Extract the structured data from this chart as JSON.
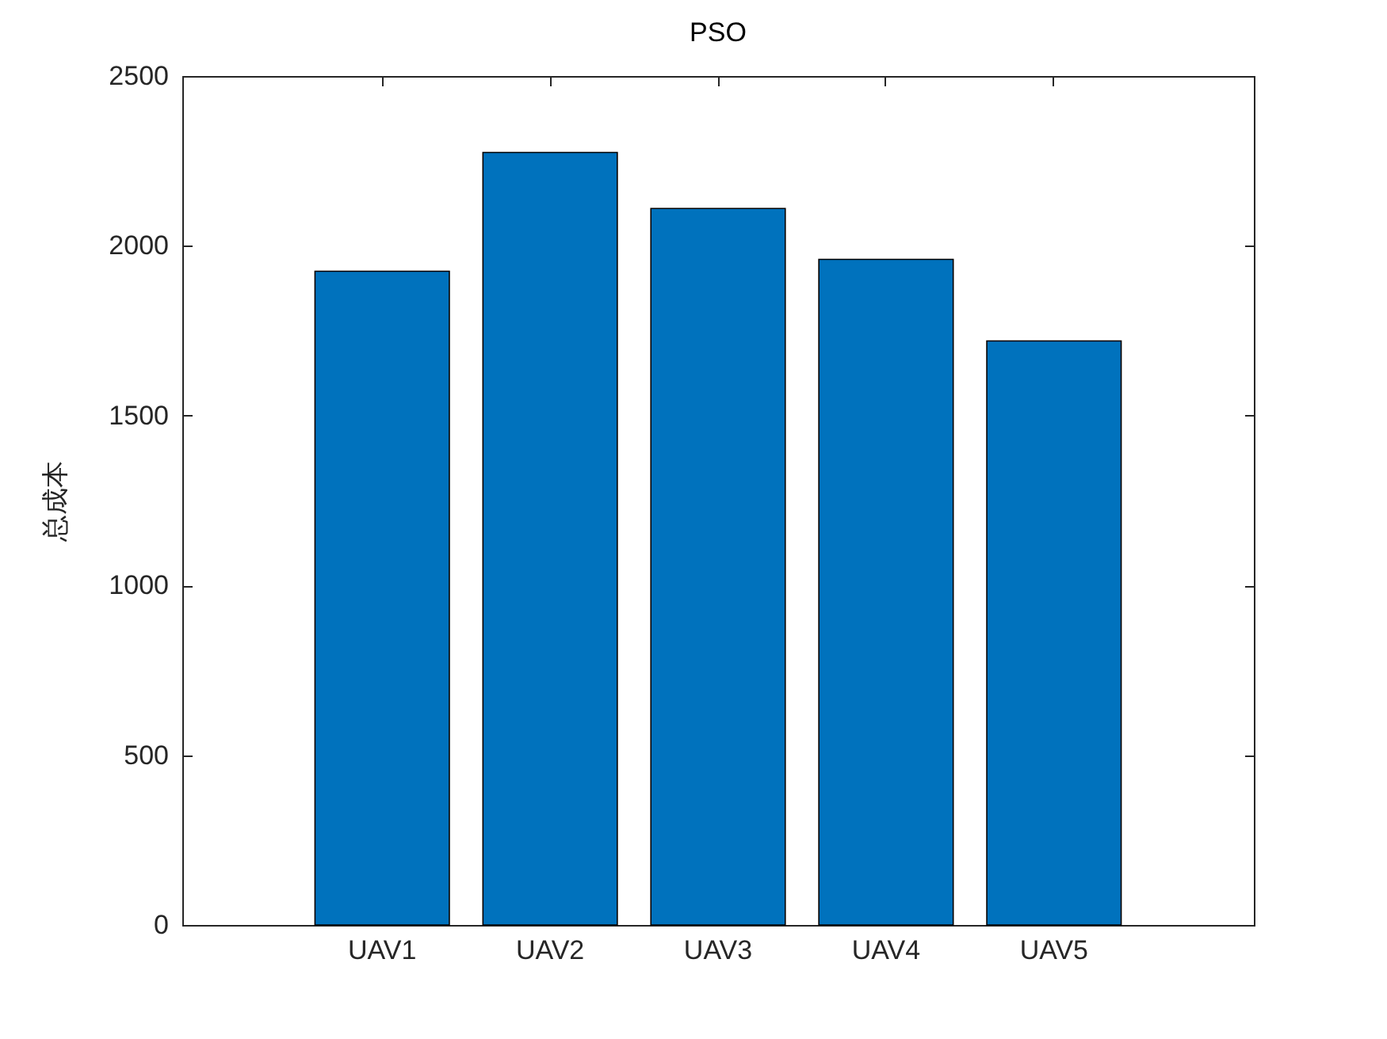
{
  "chart_data": {
    "type": "bar",
    "title": "PSO",
    "ylabel": "总成本",
    "categories": [
      "UAV1",
      "UAV2",
      "UAV3",
      "UAV4",
      "UAV5"
    ],
    "values": [
      1925,
      2275,
      2110,
      1960,
      1720
    ],
    "color": "#0072bd",
    "ylim": [
      0,
      2500
    ],
    "yticks": [
      0,
      500,
      1000,
      1500,
      2000,
      2500
    ]
  }
}
